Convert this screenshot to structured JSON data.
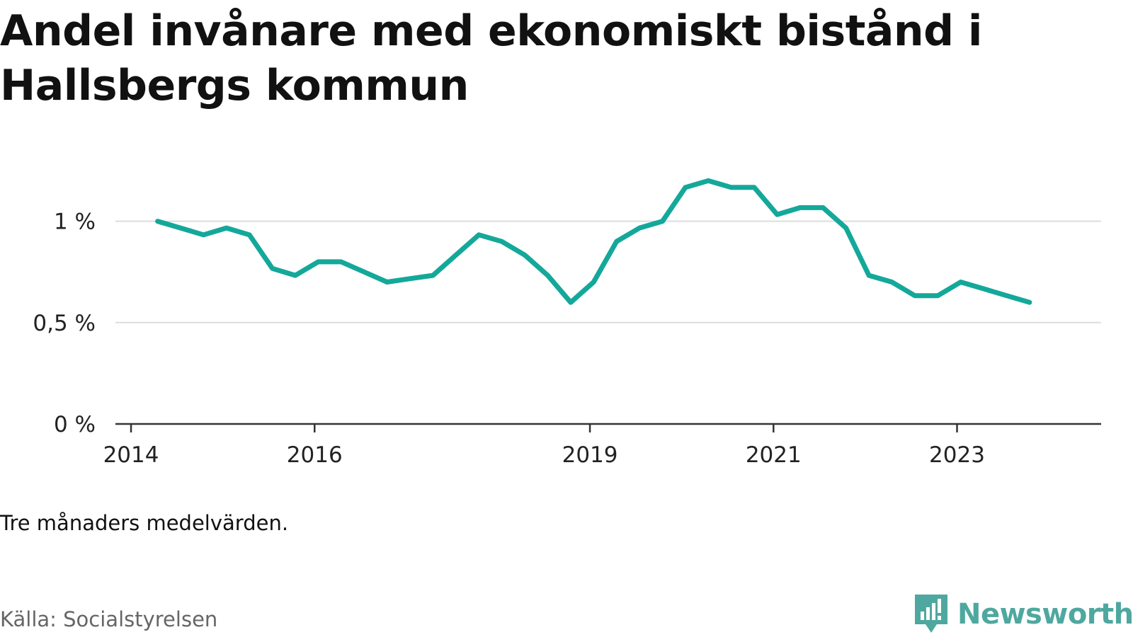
{
  "title": "Andel invånare med ekonomiskt bistånd i Hallsbergs kommun",
  "note": "Tre månaders medelvärden.",
  "source": "Källa: Socialstyrelsen",
  "brand": {
    "name": "Newsworthy",
    "icon": "newsworthy-logo-icon",
    "color": "#4fa89f"
  },
  "chart_data": {
    "type": "line",
    "title": "Andel invånare med ekonomiskt bistånd i Hallsbergs kommun",
    "xlabel": "",
    "ylabel": "",
    "ylim": [
      0,
      1.25
    ],
    "yticks": [
      {
        "value": 0,
        "label": "0 %"
      },
      {
        "value": 0.5,
        "label": "0,5 %"
      },
      {
        "value": 1,
        "label": "1 %"
      }
    ],
    "xticks": [
      {
        "value": 2014,
        "label": "2014"
      },
      {
        "value": 2016,
        "label": "2016"
      },
      {
        "value": 2019,
        "label": "2019"
      },
      {
        "value": 2021,
        "label": "2021"
      },
      {
        "value": 2023,
        "label": "2023"
      }
    ],
    "xlim": [
      2013.83,
      2024.57
    ],
    "grid": true,
    "color": "#14a89a",
    "series": [
      {
        "x": [
          2014.29,
          2014.54,
          2014.79,
          2015.04,
          2015.29,
          2015.54,
          2015.79,
          2016.04,
          2016.29,
          2016.54,
          2016.79,
          2017.04,
          2017.29,
          2017.54,
          2017.79,
          2018.04,
          2018.29,
          2018.54,
          2018.79,
          2019.04,
          2019.29,
          2019.54,
          2019.79,
          2020.04,
          2020.29,
          2020.54,
          2020.79,
          2021.04,
          2021.29,
          2021.54,
          2021.79,
          2022.04,
          2022.29,
          2022.54,
          2022.79,
          2023.04,
          2023.29,
          2023.54,
          2023.79
        ],
        "values": [
          1.0,
          0.967,
          0.933,
          0.967,
          0.933,
          0.767,
          0.733,
          0.8,
          0.8,
          0.75,
          0.7,
          0.717,
          0.733,
          0.833,
          0.933,
          0.9,
          0.833,
          0.733,
          0.6,
          0.7,
          0.9,
          0.967,
          1.0,
          1.167,
          1.2,
          1.167,
          1.167,
          1.033,
          1.067,
          1.067,
          0.967,
          0.733,
          0.7,
          0.633,
          0.633,
          0.7,
          0.667,
          0.633,
          0.6
        ]
      }
    ]
  }
}
